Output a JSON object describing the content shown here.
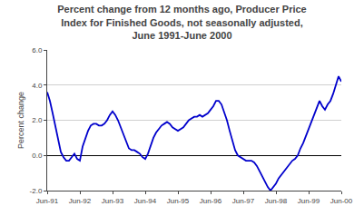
{
  "chart_data": {
    "type": "line",
    "title": "Percent change from 12 months ago, Producer Price\nIndex for Finished Goods, not seasonally adjusted,\nJune 1991-June 2000",
    "ylabel": "Percent change",
    "categories": [
      "Jun-91",
      null,
      null,
      null,
      null,
      null,
      null,
      null,
      null,
      null,
      null,
      null,
      "Jun-92",
      null,
      null,
      null,
      null,
      null,
      null,
      null,
      null,
      null,
      null,
      null,
      "Jun-93",
      null,
      null,
      null,
      null,
      null,
      null,
      null,
      null,
      null,
      null,
      null,
      "Jun-94",
      null,
      null,
      null,
      null,
      null,
      null,
      null,
      null,
      null,
      null,
      null,
      "Jun-95",
      null,
      null,
      null,
      null,
      null,
      null,
      null,
      null,
      null,
      null,
      null,
      "Jun-96",
      null,
      null,
      null,
      null,
      null,
      null,
      null,
      null,
      null,
      null,
      null,
      "Jun-97",
      null,
      null,
      null,
      null,
      null,
      null,
      null,
      null,
      null,
      null,
      null,
      "Jun-98",
      null,
      null,
      null,
      null,
      null,
      null,
      null,
      null,
      null,
      null,
      null,
      "Jun-99",
      null,
      null,
      null,
      null,
      null,
      null,
      null,
      null,
      null,
      null,
      null,
      "Jun-00"
    ],
    "values": [
      3.6,
      3.1,
      2.4,
      1.6,
      0.8,
      0.2,
      -0.1,
      -0.3,
      -0.3,
      -0.1,
      0.1,
      -0.2,
      -0.3,
      0.5,
      1.0,
      1.4,
      1.7,
      1.8,
      1.8,
      1.7,
      1.7,
      1.8,
      2.0,
      2.3,
      2.5,
      2.3,
      2.0,
      1.6,
      1.1,
      0.7,
      0.4,
      0.3,
      0.3,
      0.2,
      0.1,
      -0.1,
      -0.2,
      0.1,
      0.6,
      1.0,
      1.3,
      1.5,
      1.7,
      1.8,
      1.9,
      1.8,
      1.6,
      1.5,
      1.4,
      1.5,
      1.6,
      1.8,
      2.0,
      2.1,
      2.2,
      2.2,
      2.3,
      2.2,
      2.3,
      2.4,
      2.6,
      2.8,
      3.1,
      3.1,
      2.9,
      2.5,
      2.0,
      1.4,
      0.8,
      0.3,
      0.0,
      -0.1,
      -0.2,
      -0.3,
      -0.3,
      -0.3,
      -0.4,
      -0.6,
      -0.9,
      -1.2,
      -1.5,
      -1.8,
      -2.0,
      -1.8,
      -1.6,
      -1.3,
      -1.1,
      -0.9,
      -0.7,
      -0.5,
      -0.3,
      -0.2,
      0.0,
      0.4,
      0.7,
      1.1,
      1.5,
      1.9,
      2.4,
      2.8,
      3.1,
      2.8,
      2.6,
      2.9,
      3.1,
      3.5,
      4.0,
      4.5,
      4.2
    ],
    "color": "#0000CC",
    "ylim": [
      -2.0,
      6.0
    ],
    "yticks": [
      {
        "value": -2.0,
        "label": "-2.0"
      },
      {
        "value": 0.0,
        "label": "0.0"
      },
      {
        "value": 2.0,
        "label": "2.0"
      },
      {
        "value": 4.0,
        "label": "4.0"
      },
      {
        "value": 6.0,
        "label": "6.0"
      }
    ],
    "grid": true
  }
}
